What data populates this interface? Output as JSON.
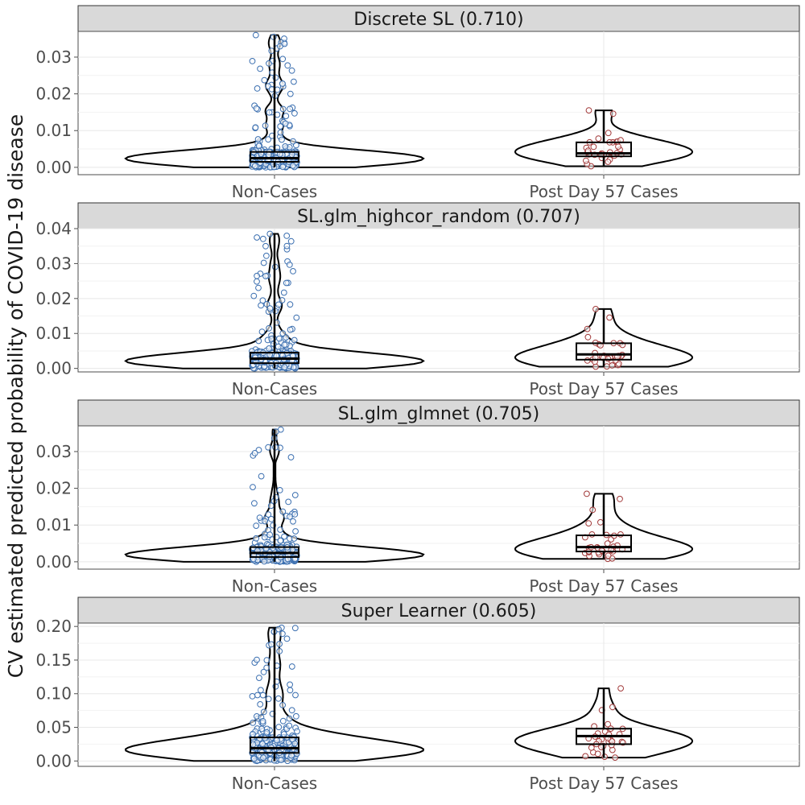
{
  "chart_data": {
    "type": "violin",
    "ylabel": "CV estimated predicted probability of COVID-19 disease",
    "categories": [
      "Non-Cases",
      "Post Day 57 Cases"
    ],
    "colors": {
      "non_cases": "#3b6fb0",
      "cases": "#a23a3a",
      "strip_fill": "#d9d9d9",
      "grid": "#e8e8e8"
    },
    "grid": true,
    "panels": [
      {
        "title": "Discrete SL (0.710)",
        "ylim": [
          -0.002,
          0.037
        ],
        "yticks": [
          0.0,
          0.01,
          0.02,
          0.03
        ],
        "ytick_labels": [
          "0.00",
          "0.01",
          "0.02",
          "0.03"
        ],
        "groups": [
          {
            "name": "Non-Cases",
            "min": 0.0,
            "q1": 0.0015,
            "median": 0.0025,
            "q3": 0.0042,
            "max": 0.036
          },
          {
            "name": "Post Day 57 Cases",
            "min": 0.0003,
            "q1": 0.003,
            "median": 0.0038,
            "q3": 0.0068,
            "max": 0.0155
          }
        ]
      },
      {
        "title": "SL.glm_highcor_random (0.707)",
        "ylim": [
          -0.001,
          0.04
        ],
        "yticks": [
          0.0,
          0.01,
          0.02,
          0.03,
          0.04
        ],
        "ytick_labels": [
          "0.00",
          "0.01",
          "0.02",
          "0.03",
          "0.04"
        ],
        "groups": [
          {
            "name": "Non-Cases",
            "min": 0.0,
            "q1": 0.0015,
            "median": 0.0028,
            "q3": 0.0045,
            "max": 0.0385
          },
          {
            "name": "Post Day 57 Cases",
            "min": 0.0005,
            "q1": 0.0025,
            "median": 0.004,
            "q3": 0.0072,
            "max": 0.017
          }
        ]
      },
      {
        "title": "SL.glm_glmnet (0.705)",
        "ylim": [
          -0.002,
          0.037
        ],
        "yticks": [
          0.0,
          0.01,
          0.02,
          0.03
        ],
        "ytick_labels": [
          "0.00",
          "0.01",
          "0.02",
          "0.03"
        ],
        "groups": [
          {
            "name": "Non-Cases",
            "min": 0.0,
            "q1": 0.0013,
            "median": 0.0024,
            "q3": 0.004,
            "max": 0.036
          },
          {
            "name": "Post Day 57 Cases",
            "min": 0.0008,
            "q1": 0.0028,
            "median": 0.004,
            "q3": 0.0072,
            "max": 0.0185
          }
        ]
      },
      {
        "title": "Super Learner (0.605)",
        "ylim": [
          -0.008,
          0.205
        ],
        "yticks": [
          0.0,
          0.05,
          0.1,
          0.15,
          0.2
        ],
        "ytick_labels": [
          "0.00",
          "0.05",
          "0.10",
          "0.15",
          "0.20"
        ],
        "groups": [
          {
            "name": "Non-Cases",
            "min": 0.0,
            "q1": 0.012,
            "median": 0.019,
            "q3": 0.035,
            "max": 0.198
          },
          {
            "name": "Post Day 57 Cases",
            "min": 0.005,
            "q1": 0.025,
            "median": 0.037,
            "q3": 0.048,
            "max": 0.108
          }
        ]
      }
    ]
  }
}
